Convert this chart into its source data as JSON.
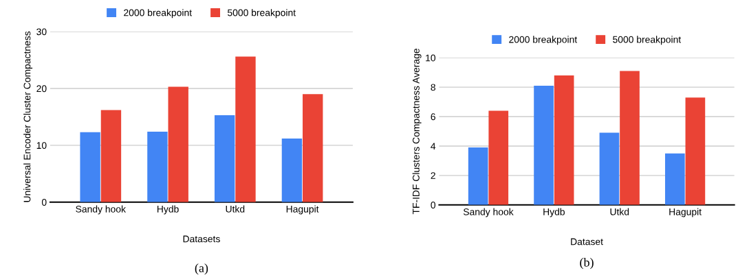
{
  "chart_data": [
    {
      "type": "bar",
      "categories": [
        "Sandy hook",
        "Hydb",
        "Utkd",
        "Hagupit"
      ],
      "xlabel": "Datasets",
      "ylabel": "Universal Encoder Cluster Compactness",
      "series": [
        {
          "name": "2000 breakpoint",
          "color": "#4285f4",
          "values": [
            12.3,
            12.4,
            15.3,
            11.2
          ]
        },
        {
          "name": "5000 breakpoint",
          "color": "#ea4335",
          "values": [
            16.2,
            20.3,
            25.6,
            19.0
          ]
        }
      ],
      "ylim": [
        0,
        30
      ],
      "yticks": [
        0,
        10,
        20,
        30
      ],
      "grid": "y",
      "legend": "top",
      "annotations": [
        "(a)"
      ]
    },
    {
      "type": "bar",
      "categories": [
        "Sandy hook",
        "Hydb",
        "Utkd",
        "Hagupit"
      ],
      "xlabel": "Dataset",
      "ylabel": "TF-IDF Clusters Compactness Average",
      "series": [
        {
          "name": "2000 breakpoint",
          "color": "#4285f4",
          "values": [
            3.9,
            8.1,
            4.9,
            3.5
          ]
        },
        {
          "name": "5000 breakpoint",
          "color": "#ea4335",
          "values": [
            6.4,
            8.8,
            9.1,
            7.3
          ]
        }
      ],
      "ylim": [
        0,
        10
      ],
      "yticks": [
        0,
        2,
        4,
        6,
        8,
        10
      ],
      "grid": "y",
      "legend": "top",
      "annotations": [
        "(b)"
      ]
    }
  ]
}
